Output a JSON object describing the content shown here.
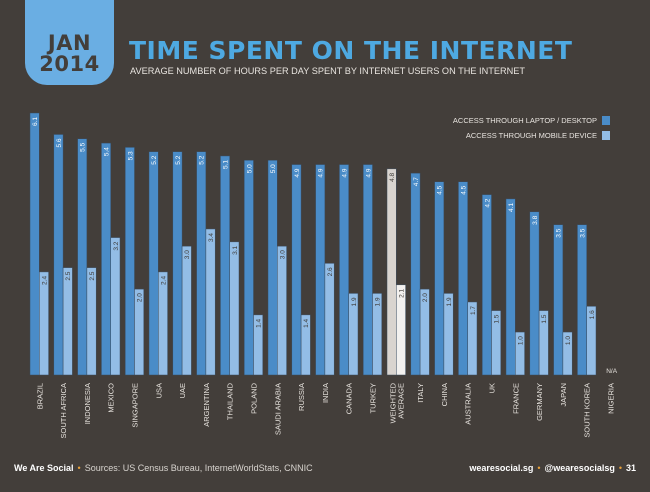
{
  "badge": {
    "month": "JAN",
    "year": "2014"
  },
  "header": {
    "title": "TIME SPENT ON THE INTERNET",
    "subtitle": "AVERAGE NUMBER OF HOURS PER DAY SPENT BY INTERNET USERS ON THE INTERNET"
  },
  "colors": {
    "desktop": "#4a8cc8",
    "mobile": "#93bde6",
    "average_desktop": "#d9d4cf",
    "average_mobile": "#f3f1ef",
    "background": "#433e3a",
    "accent": "#4ea9e2"
  },
  "chart_data": {
    "type": "bar",
    "title": "TIME SPENT ON THE INTERNET",
    "subtitle": "AVERAGE NUMBER OF HOURS PER DAY SPENT BY INTERNET USERS ON THE INTERNET",
    "legend_placement": "top-right",
    "grid": false,
    "ylim": [
      0,
      6.1
    ],
    "categories": [
      "BRAZIL",
      "SOUTH AFRICA",
      "INDONESIA",
      "MEXICO",
      "SINGAPORE",
      "USA",
      "UAE",
      "ARGENTINA",
      "THAILAND",
      "POLAND",
      "SAUDI ARABIA",
      "RUSSIA",
      "INDIA",
      "CANADA",
      "TURKEY",
      "WEIGHTED AVERAGE",
      "ITALY",
      "CHINA",
      "AUSTRALIA",
      "UK",
      "FRANCE",
      "GERMANY",
      "JAPAN",
      "SOUTH KOREA",
      "NIGERIA"
    ],
    "highlight_category": "WEIGHTED AVERAGE",
    "series": [
      {
        "name": "ACCESS THROUGH LAPTOP / DESKTOP",
        "values": [
          6.1,
          5.6,
          5.5,
          5.4,
          5.3,
          5.2,
          5.2,
          5.2,
          5.1,
          5.0,
          5.0,
          4.9,
          4.9,
          4.9,
          4.9,
          4.8,
          4.7,
          4.5,
          4.5,
          4.2,
          4.1,
          3.8,
          3.5,
          3.5,
          null
        ]
      },
      {
        "name": "ACCESS THROUGH MOBILE DEVICE",
        "values": [
          2.4,
          2.5,
          2.5,
          3.2,
          2.0,
          2.4,
          3.0,
          3.4,
          3.1,
          1.4,
          3.0,
          1.4,
          2.6,
          1.9,
          1.9,
          2.1,
          2.0,
          1.9,
          1.7,
          1.5,
          1.0,
          1.5,
          1.0,
          1.6,
          null
        ]
      }
    ],
    "missing_label": "N/A"
  },
  "footer": {
    "brand": "We Are Social",
    "sources": "Sources: US Census Bureau, InternetWorldStats, CNNIC",
    "website": "wearesocial.sg",
    "handle": "@wearesocialsg",
    "page": "31",
    "separator": "•"
  }
}
